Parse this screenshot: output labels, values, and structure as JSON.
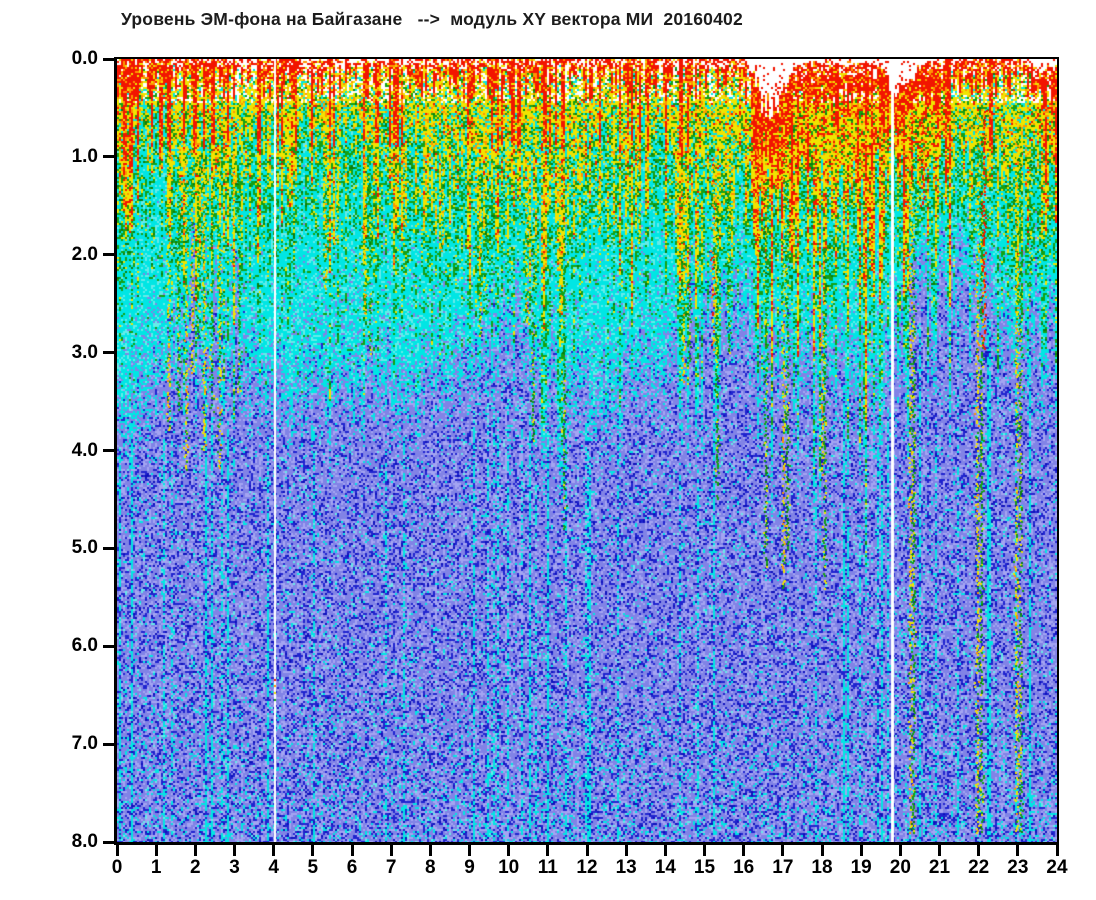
{
  "header": {
    "title": "Уровень ЭМ-фона на Байгазане   -->  модуль XY вектора МИ  20160402"
  },
  "chart_data": {
    "type": "scatter",
    "variant": "dense point-cloud spectrogram of EM background level vs hour of day",
    "title": "Уровень ЭМ-фона на Байгазане --> модуль XY вектора МИ 20160402",
    "station": "Байгазан",
    "date_label": "20160402",
    "xlabel": "",
    "ylabel": "",
    "x_ticks": [
      "0",
      "1",
      "2",
      "3",
      "4",
      "5",
      "6",
      "7",
      "8",
      "9",
      "10",
      "11",
      "12",
      "13",
      "14",
      "15",
      "16",
      "17",
      "18",
      "19",
      "20",
      "21",
      "22",
      "23",
      "24"
    ],
    "y_ticks": [
      "0.0",
      "1.0",
      "2.0",
      "3.0",
      "4.0",
      "5.0",
      "6.0",
      "7.0",
      "8.0"
    ],
    "xlim": [
      0,
      24
    ],
    "ylim": [
      0,
      8
    ],
    "y_inverted": true,
    "grid": false,
    "legend": false,
    "palette": {
      "red": "#f21500",
      "orange": "#ff9500",
      "yellow": "#f0e400",
      "green": "#14a014",
      "dark_green": "#0b7d0b",
      "cyan": "#00e6e4",
      "light_cyan": "#66ebe9",
      "periwinkle": "#8183e6",
      "light_periwinkle": "#a4a5f2",
      "dark_blue": "#2024cf",
      "navy": "#0e11bb",
      "white": "#ffffff",
      "axis": "#000000"
    },
    "gaps": [
      {
        "t": 4.0,
        "w": 2
      },
      {
        "t": 19.75,
        "w": 3
      }
    ],
    "gap_dots": [
      {
        "t": 4.0,
        "d": 6.33,
        "color": "#f21500"
      },
      {
        "t": 4.0,
        "d": 6.4,
        "color": "#ff9500"
      },
      {
        "t": 4.0,
        "d": 6.47,
        "color": "#f0e400"
      },
      {
        "t": 4.0,
        "d": 6.54,
        "color": "#14a014"
      }
    ],
    "profiles": {
      "envelope_top": {
        "step": 0.25,
        "values": [
          0,
          0,
          0,
          0,
          0,
          0,
          0,
          0,
          0,
          0,
          0,
          0,
          0,
          0,
          0,
          0,
          0,
          0,
          0,
          0,
          0,
          0,
          0,
          0,
          0,
          0,
          0,
          0,
          0,
          0,
          0,
          0,
          0,
          0,
          0,
          0,
          0,
          0,
          0,
          0,
          0,
          0,
          0,
          0,
          0,
          0,
          0,
          0,
          0,
          0,
          0,
          0,
          0,
          0,
          0,
          0,
          0,
          0,
          0,
          0,
          0,
          0,
          0,
          0,
          0,
          0.15,
          0.45,
          0.55,
          0.35,
          0.1,
          0.05,
          0.05,
          0.05,
          0.05,
          0.05,
          0.05,
          0.05,
          0.05,
          0.05,
          0.3,
          0.3,
          0.25,
          0.1,
          0.05,
          0,
          0,
          0,
          0,
          0,
          0,
          0,
          0,
          0,
          0.05,
          0.1,
          0.12,
          0.1
        ]
      },
      "warm_depth": {
        "step": 0.25,
        "values": [
          0.9,
          0.9,
          0.8,
          0.7,
          0.6,
          0.55,
          0.9,
          1.4,
          1.8,
          1.2,
          1.0,
          1.3,
          1.6,
          1.1,
          0.9,
          0.8,
          0.8,
          0.9,
          1.0,
          1.1,
          1.0,
          1.3,
          1.2,
          1.0,
          1.1,
          1.4,
          1.1,
          1.0,
          1.0,
          1.1,
          1.2,
          1.3,
          1.4,
          1.4,
          1.3,
          1.2,
          1.3,
          1.6,
          1.4,
          1.2,
          1.3,
          1.5,
          1.7,
          1.4,
          1.3,
          1.6,
          1.4,
          1.2,
          1.3,
          1.4,
          1.2,
          1.1,
          1.2,
          1.4,
          1.2,
          1.1,
          1.2,
          1.5,
          1.8,
          1.5,
          1.5,
          1.9,
          1.6,
          1.4,
          1.5,
          1.4,
          1.0,
          0.9,
          1.2,
          1.5,
          1.7,
          1.8,
          1.9,
          1.8,
          1.7,
          1.6,
          1.6,
          1.7,
          1.8,
          0.9,
          1.0,
          1.3,
          1.4,
          1.5,
          1.5,
          1.3,
          1.2,
          1.4,
          1.7,
          1.5,
          1.3,
          1.4,
          1.6,
          1.4,
          1.3,
          1.2,
          1.1
        ]
      },
      "cyan_depth": {
        "step": 0.5,
        "values": [
          3.5,
          3.3,
          3.0,
          2.8,
          2.6,
          2.8,
          2.7,
          3.0,
          3.2,
          3.3,
          3.2,
          3.1,
          3.1,
          3.0,
          3.0,
          3.1,
          3.0,
          3.0,
          2.9,
          2.6,
          2.4,
          2.6,
          2.9,
          3.1,
          3.2,
          3.2,
          3.1,
          3.0,
          2.9,
          2.5,
          2.3,
          2.2,
          2.4,
          2.7,
          2.9,
          2.8,
          2.6,
          2.8,
          2.9,
          2.9,
          2.4,
          2.0,
          1.9,
          2.0,
          2.2,
          2.4,
          2.6,
          2.4,
          2.2
        ]
      }
    },
    "red_boosts": [
      {
        "t1": 0,
        "t2": 0.6,
        "b": 0.2
      },
      {
        "t1": 16.2,
        "t2": 17.25,
        "b": 0.45
      },
      {
        "t1": 17.25,
        "t2": 19.7,
        "b": 0.33
      },
      {
        "t1": 19.75,
        "t2": 21.3,
        "b": 0.28
      },
      {
        "t1": 23.4,
        "t2": 24,
        "b": 0.22
      }
    ],
    "blue_dips": [
      {
        "t": 1.95,
        "w": 0.1,
        "top": 1.3
      },
      {
        "t": 2.5,
        "w": 0.08,
        "top": 1.5
      },
      {
        "t": 3.05,
        "w": 0.1,
        "top": 1.6
      },
      {
        "t": 9.95,
        "w": 0.3,
        "top": 2.2
      },
      {
        "t": 10.2,
        "w": 0.1,
        "top": 2.0
      },
      {
        "t": 14.65,
        "w": 0.12,
        "top": 1.8
      },
      {
        "t": 15.0,
        "w": 0.1,
        "top": 2.0
      },
      {
        "t": 15.45,
        "w": 0.1,
        "top": 1.8
      },
      {
        "t": 16.1,
        "w": 0.1,
        "top": 2.0
      },
      {
        "t": 20.45,
        "w": 0.45,
        "top": 1.6
      },
      {
        "t": 21.1,
        "w": 0.2,
        "top": 1.8
      },
      {
        "t": 21.6,
        "w": 0.25,
        "top": 1.5
      },
      {
        "t": 22.25,
        "w": 0.2,
        "top": 1.6
      },
      {
        "t": 23.5,
        "w": 0.15,
        "top": 2.0
      }
    ],
    "deep_streaks": [
      {
        "t": 1.3,
        "d1": 0.9,
        "d2": 3.8,
        "kind": "y"
      },
      {
        "t": 1.55,
        "d1": 1.0,
        "d2": 3.6,
        "kind": "g"
      },
      {
        "t": 1.75,
        "d1": 0.8,
        "d2": 4.2,
        "kind": "y"
      },
      {
        "t": 1.9,
        "d1": 0.8,
        "d2": 3.2,
        "kind": "y"
      },
      {
        "t": 2.05,
        "d1": 1.0,
        "d2": 2.9,
        "kind": "g"
      },
      {
        "t": 2.2,
        "d1": 1.0,
        "d2": 4.0,
        "kind": "y"
      },
      {
        "t": 2.4,
        "d1": 1.2,
        "d2": 3.6,
        "kind": "g"
      },
      {
        "t": 2.6,
        "d1": 1.0,
        "d2": 4.2,
        "kind": "y"
      },
      {
        "t": 2.95,
        "d1": 0.9,
        "d2": 2.6,
        "kind": "y"
      },
      {
        "t": 3.1,
        "d1": 1.2,
        "d2": 3.4,
        "kind": "g"
      },
      {
        "t": 5.3,
        "d1": 0.9,
        "d2": 2.4,
        "kind": "y"
      },
      {
        "t": 5.6,
        "d1": 0.8,
        "d2": 1.9,
        "kind": "y"
      },
      {
        "t": 6.3,
        "d1": 1.0,
        "d2": 2.6,
        "kind": "y"
      },
      {
        "t": 6.45,
        "d1": 1.2,
        "d2": 3.0,
        "kind": "g"
      },
      {
        "t": 7.3,
        "d1": 0.9,
        "d2": 1.8,
        "kind": "y"
      },
      {
        "t": 8.3,
        "d1": 1.0,
        "d2": 2.0,
        "kind": "y"
      },
      {
        "t": 9.25,
        "d1": 1.1,
        "d2": 2.8,
        "kind": "y"
      },
      {
        "t": 9.4,
        "d1": 1.2,
        "d2": 2.6,
        "kind": "g"
      },
      {
        "t": 10.45,
        "d1": 1.2,
        "d2": 2.7,
        "kind": "y"
      },
      {
        "t": 10.6,
        "d1": 1.5,
        "d2": 4.0,
        "kind": "g"
      },
      {
        "t": 11.3,
        "d1": 1.1,
        "d2": 2.9,
        "kind": "y"
      },
      {
        "t": 11.4,
        "d1": 1.5,
        "d2": 4.8,
        "kind": "g"
      },
      {
        "t": 12.3,
        "d1": 0.9,
        "d2": 1.8,
        "kind": "y"
      },
      {
        "t": 13.3,
        "d1": 0.9,
        "d2": 1.9,
        "kind": "y"
      },
      {
        "t": 14.45,
        "d1": 1.2,
        "d2": 3.3,
        "kind": "y"
      },
      {
        "t": 14.6,
        "d1": 1.4,
        "d2": 3.1,
        "kind": "g"
      },
      {
        "t": 15.2,
        "d1": 1.0,
        "d2": 3.0,
        "kind": "yr"
      },
      {
        "t": 15.3,
        "d1": 1.5,
        "d2": 4.5,
        "kind": "g"
      },
      {
        "t": 15.6,
        "d1": 1.3,
        "d2": 3.0,
        "kind": "g"
      },
      {
        "t": 16.35,
        "d1": 0.8,
        "d2": 2.2,
        "kind": "yr"
      },
      {
        "t": 16.55,
        "d1": 1.2,
        "d2": 5.2,
        "kind": "g"
      },
      {
        "t": 17.0,
        "d1": 1.0,
        "d2": 5.4,
        "kind": "y"
      },
      {
        "t": 17.1,
        "d1": 1.2,
        "d2": 5.0,
        "kind": "g"
      },
      {
        "t": 18.0,
        "d1": 2.8,
        "d2": 4.3,
        "kind": "y"
      },
      {
        "t": 18.05,
        "d1": 1.8,
        "d2": 5.4,
        "kind": "g"
      },
      {
        "t": 20.25,
        "d1": 0.5,
        "d2": 7.9,
        "kind": "y"
      },
      {
        "t": 20.32,
        "d1": 1.0,
        "d2": 7.9,
        "kind": "g"
      },
      {
        "t": 20.55,
        "d1": 0.3,
        "d2": 1.5,
        "kind": "r"
      },
      {
        "t": 21.95,
        "d1": 0.5,
        "d2": 7.9,
        "kind": "y"
      },
      {
        "t": 22.05,
        "d1": 0.8,
        "d2": 7.9,
        "kind": "g"
      },
      {
        "t": 22.12,
        "d1": 0.5,
        "d2": 3.0,
        "kind": "r"
      },
      {
        "t": 22.95,
        "d1": 0.5,
        "d2": 7.9,
        "kind": "y"
      },
      {
        "t": 23.05,
        "d1": 0.8,
        "d2": 7.9,
        "kind": "g"
      },
      {
        "t": 23.3,
        "d1": 1.0,
        "d2": 2.5,
        "kind": "g"
      }
    ],
    "noise": {
      "seed": 42,
      "cyan_streak_chance": 0.085
    }
  }
}
